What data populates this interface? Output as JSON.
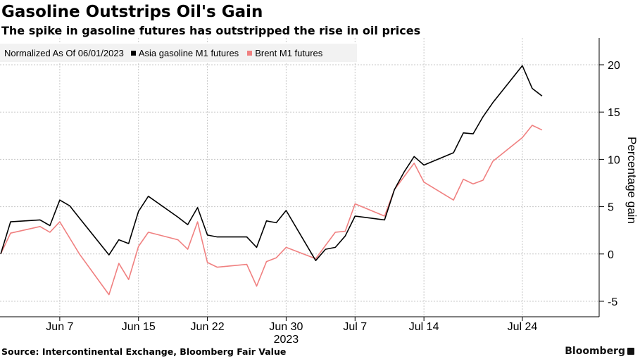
{
  "chart_data": {
    "type": "line",
    "title": "Gasoline Outstrips Oil's Gain",
    "subtitle": "The spike in gasoline futures has outstripped the rise in oil prices",
    "note": "Normalized As Of 06/01/2023",
    "ylabel": "Percentage gain",
    "ylim": [
      -5,
      22
    ],
    "yticks": [
      -5,
      0,
      5,
      10,
      15,
      20
    ],
    "xlim": [
      "2023-06-01",
      "2023-07-28"
    ],
    "x_ticks": [
      "2023-06-07",
      "2023-06-15",
      "2023-06-22",
      "2023-06-30",
      "2023-07-07",
      "2023-07-14",
      "2023-07-24"
    ],
    "x_tick_labels": [
      "Jun 7",
      "Jun 15",
      "Jun 22",
      "Jun 30",
      "Jul 7",
      "Jul 14",
      "Jul 24"
    ],
    "year_label": "2023",
    "grid": true,
    "legend_position": "top-left",
    "x": [
      "2023-06-01",
      "2023-06-02",
      "2023-06-05",
      "2023-06-06",
      "2023-06-07",
      "2023-06-08",
      "2023-06-09",
      "2023-06-12",
      "2023-06-13",
      "2023-06-14",
      "2023-06-15",
      "2023-06-16",
      "2023-06-19",
      "2023-06-20",
      "2023-06-21",
      "2023-06-22",
      "2023-06-23",
      "2023-06-26",
      "2023-06-27",
      "2023-06-28",
      "2023-06-29",
      "2023-06-30",
      "2023-07-03",
      "2023-07-04",
      "2023-07-05",
      "2023-07-06",
      "2023-07-07",
      "2023-07-10",
      "2023-07-11",
      "2023-07-12",
      "2023-07-13",
      "2023-07-14",
      "2023-07-17",
      "2023-07-18",
      "2023-07-19",
      "2023-07-20",
      "2023-07-21",
      "2023-07-24",
      "2023-07-25",
      "2023-07-26",
      "2023-07-27"
    ],
    "series": [
      {
        "name": "Asia gasoline M1 futures",
        "color": "#000000",
        "values": [
          0,
          3.4,
          3.6,
          3.0,
          5.7,
          5.1,
          3.8,
          -0.1,
          1.5,
          1.1,
          4.5,
          6.1,
          3.9,
          3.1,
          4.9,
          2.0,
          1.8,
          1.8,
          0.7,
          3.5,
          3.3,
          4.6,
          -0.7,
          0.5,
          0.7,
          1.9,
          4.0,
          3.6,
          6.8,
          8.7,
          10.3,
          9.4,
          10.7,
          12.8,
          12.7,
          14.5,
          16.0,
          19.9,
          17.5,
          16.7,
          null
        ]
      },
      {
        "name": "Brent M1 futures",
        "color": "#f08080",
        "values": [
          0,
          2.2,
          2.9,
          2.3,
          3.4,
          1.7,
          0.0,
          -4.3,
          -1.0,
          -2.7,
          0.8,
          2.3,
          1.5,
          0.5,
          3.4,
          -0.9,
          -1.4,
          -1.1,
          -3.4,
          -0.8,
          -0.4,
          0.7,
          -0.5,
          0.9,
          2.3,
          2.4,
          5.3,
          4.0,
          6.8,
          8.2,
          9.6,
          7.6,
          5.7,
          7.9,
          7.4,
          7.8,
          9.8,
          12.3,
          13.6,
          13.1,
          null
        ]
      }
    ]
  },
  "source": "Source: Intercontinental Exchange, Bloomberg Fair Value",
  "brand": "Bloomberg"
}
